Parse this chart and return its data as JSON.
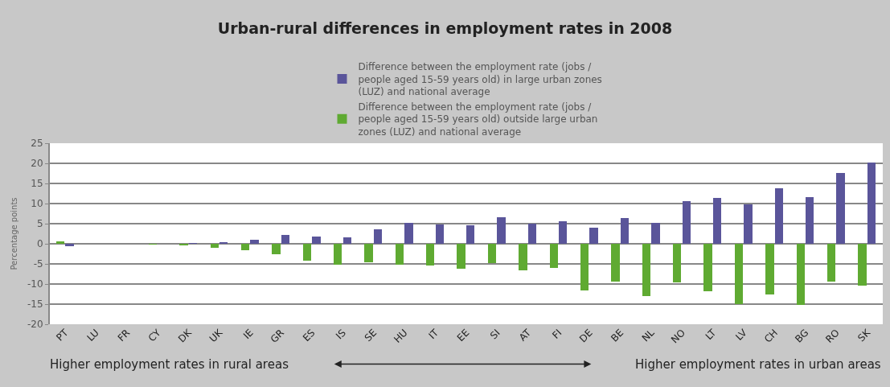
{
  "chart_data": {
    "type": "bar",
    "title": "Urban-rural differences in employment rates in 2008",
    "ylabel": "Percentage points",
    "categories": [
      "PT",
      "LU",
      "FR",
      "CY",
      "DK",
      "UK",
      "IE",
      "GR",
      "ES",
      "IS",
      "SE",
      "HU",
      "IT",
      "EE",
      "SI",
      "AT",
      "FI",
      "DE",
      "BE",
      "NL",
      "NO",
      "LT",
      "LV",
      "CH",
      "BG",
      "RO",
      "SK"
    ],
    "series": [
      {
        "name": "Difference between the employment rate (jobs / people aged 15-59 years old) outside large urban zones (LUZ) and national average",
        "color": "#5faa32",
        "values": [
          0.7,
          0,
          0,
          -0.2,
          -0.3,
          -0.9,
          -1.6,
          -2.6,
          -4.1,
          -5.1,
          -4.5,
          -5.1,
          -5.4,
          -6.2,
          -4.7,
          -6.5,
          -6.0,
          -11.6,
          -9.4,
          -12.9,
          -9.5,
          -11.8,
          -14.9,
          -12.5,
          -15.1,
          -9.4,
          -10.4
        ]
      },
      {
        "name": "Difference between the employment rate (jobs / people aged 15-59 years old) in large urban zones (LUZ) and national average",
        "color": "#5a559a",
        "values": [
          -0.6,
          0,
          0,
          0,
          0.2,
          0.3,
          1.1,
          2.2,
          1.8,
          1.7,
          3.6,
          5.2,
          4.9,
          4.7,
          6.7,
          5.0,
          5.6,
          4.0,
          6.5,
          5.3,
          10.6,
          11.5,
          9.9,
          13.9,
          11.6,
          17.6,
          20.2
        ]
      }
    ],
    "ylim": [
      -20,
      25
    ],
    "yticks": [
      -20,
      -15,
      -10,
      -5,
      0,
      5,
      10,
      15,
      20,
      25
    ],
    "grid": "y",
    "legend": "top",
    "annotations": [
      "Higher employment rates in rural areas",
      "Higher employment rates in urban areas"
    ]
  }
}
